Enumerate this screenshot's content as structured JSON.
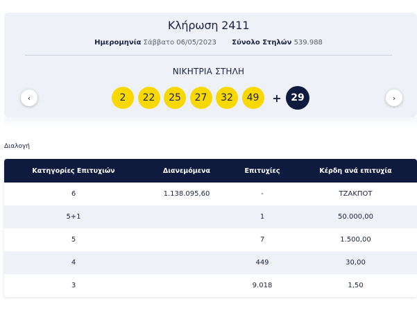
{
  "draw": {
    "title": "Κλήρωση 2411",
    "date_label": "Ημερομηνία",
    "date_value": "Σάββατο 06/05/2023",
    "columns_label": "Σύνολο Στηλών",
    "columns_value": "539.988",
    "winning_label": "ΝΙΚΗΤΡΙΑ ΣΤΗΛΗ",
    "numbers": [
      "2",
      "22",
      "25",
      "27",
      "32",
      "49"
    ],
    "plus": "+",
    "joker": "29",
    "prev_icon": "‹",
    "next_icon": "›"
  },
  "section_label": "Διαλογή",
  "table": {
    "headers": [
      "Κατηγορίες Επιτυχιών",
      "Διανεμόμενα",
      "Επιτυχίες",
      "Κέρδη ανά επιτυχία"
    ],
    "rows": [
      [
        "6",
        "1.138.095,60",
        "-",
        "ΤΖΑΚΠΟΤ"
      ],
      [
        "5+1",
        "",
        "1",
        "50.000,00"
      ],
      [
        "5",
        "",
        "7",
        "1.500,00"
      ],
      [
        "4",
        "",
        "449",
        "30,00"
      ],
      [
        "3",
        "",
        "9.018",
        "1,50"
      ]
    ]
  },
  "colors": {
    "ball": "#f9d800",
    "joker": "#0f1a3f",
    "header": "#0f1a3f",
    "card": "#eef1f7"
  }
}
